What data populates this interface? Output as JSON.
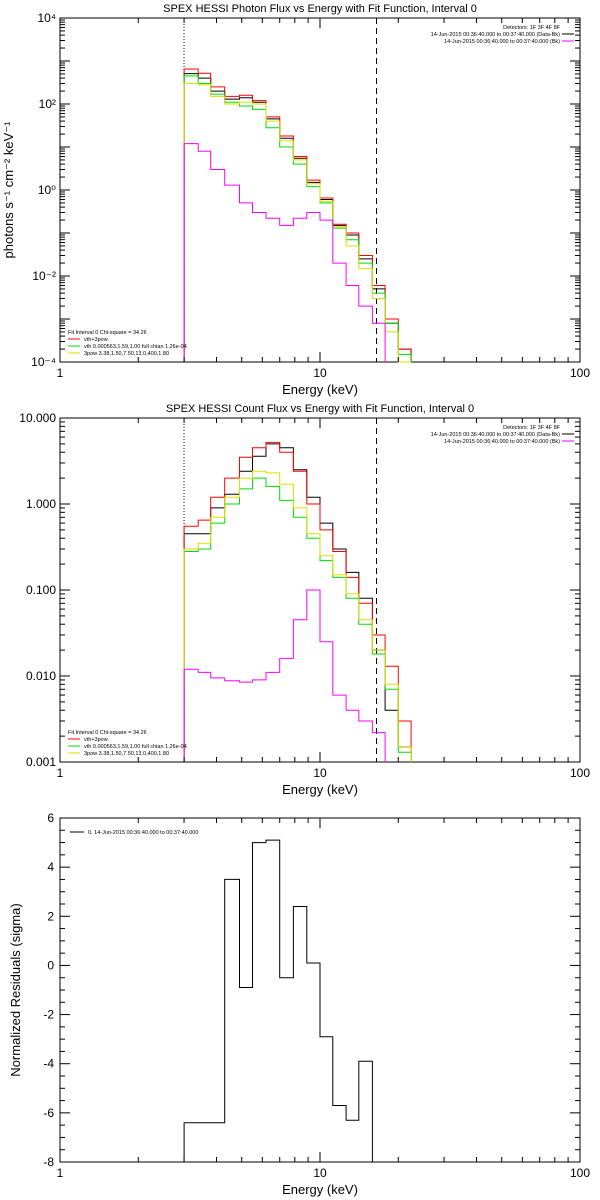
{
  "chart_data": [
    {
      "type": "line",
      "title": "SPEX HESSI Photon Flux vs Energy with Fit Function, Interval 0",
      "xlabel": "Energy (keV)",
      "ylabel": "photons s⁻¹ cm⁻² keV⁻¹",
      "xscale": "log",
      "yscale": "log",
      "xlim": [
        1,
        100
      ],
      "ylim": [
        0.0001,
        10000
      ],
      "x_ticks": [
        "1",
        "10",
        "100"
      ],
      "y_ticks": [
        "10⁻⁴",
        "10⁻²",
        "10⁰",
        "10²",
        "10⁴"
      ],
      "x_edges": [
        3,
        3.4,
        3.8,
        4.3,
        4.9,
        5.5,
        6.2,
        7.0,
        7.9,
        8.9,
        10.0,
        11.2,
        12.6,
        14.1,
        15.9,
        17.8,
        20.0,
        22.4
      ],
      "vlines": [
        {
          "x": 3.0,
          "style": "dotted"
        },
        {
          "x": 16.5,
          "style": "dashed"
        }
      ],
      "legend_tr": {
        "header": "Detectors: 1F 3F 4F 8F",
        "entries": [
          {
            "label": "14-Jun-2015 00:36:40.000 to 00:37:40.000 (Data-Bk)",
            "color": "#000000"
          },
          {
            "label": "14-Jun-2015 00:36:40.000 to 00:37:40.000 (Bk)",
            "color": "#ff00ff"
          }
        ]
      },
      "legend_bl": {
        "header": "Fit Interval 0   Chi-square = 34.26",
        "entries": [
          {
            "label": "vth+3pow",
            "color": "#ff0000"
          },
          {
            "label": "vth 0.000563,1.59,1.00   full chian 1.26e-04",
            "color": "#00dd00"
          },
          {
            "label": "3pow 3.38,1.50,7.50,13.0,400,1.80",
            "color": "#dddd00"
          }
        ]
      },
      "series": [
        {
          "color": "#000000",
          "values": [
            510,
            400,
            200,
            130,
            140,
            110,
            45,
            16,
            5.5,
            1.5,
            0.6,
            0.15,
            0.09,
            0.025,
            0.005,
            0.0008,
            0.0002
          ]
        },
        {
          "color": "#ff0000",
          "values": [
            650,
            520,
            250,
            150,
            160,
            120,
            50,
            18,
            6,
            1.7,
            0.65,
            0.16,
            0.1,
            0.03,
            0.006,
            0.001,
            0.0002
          ]
        },
        {
          "color": "#00dd00",
          "values": [
            450,
            300,
            170,
            110,
            90,
            75,
            28,
            10,
            4,
            1.2,
            0.5,
            0.13,
            0.07,
            0.02,
            0.004,
            0.0008,
            0.00015
          ]
        },
        {
          "color": "#dddd00",
          "values": [
            300,
            280,
            150,
            100,
            110,
            100,
            40,
            14,
            5,
            1.4,
            0.55,
            0.14,
            0.05,
            0.015,
            0.003,
            0.0005,
            0.0001
          ]
        },
        {
          "color": "#ff00ff",
          "values": [
            12,
            8,
            3,
            1.3,
            0.5,
            0.3,
            0.22,
            0.15,
            0.22,
            0.3,
            0.2,
            0.02,
            0.006,
            0.002,
            0.0008,
            null,
            null
          ]
        }
      ]
    },
    {
      "type": "line",
      "title": "SPEX HESSI Count Flux vs Energy with Fit Function, Interval 0",
      "xlabel": "Energy (keV)",
      "ylabel": "",
      "xscale": "log",
      "yscale": "log",
      "xlim": [
        1,
        100
      ],
      "ylim": [
        0.001,
        10
      ],
      "x_ticks": [
        "1",
        "10",
        "100"
      ],
      "y_ticks": [
        "0.001",
        "0.010",
        "0.100",
        "1.000",
        "10.000"
      ],
      "x_edges": [
        3,
        3.4,
        3.8,
        4.3,
        4.9,
        5.5,
        6.2,
        7.0,
        7.9,
        8.9,
        10.0,
        11.2,
        12.6,
        14.1,
        15.9,
        17.8,
        20.0,
        22.4
      ],
      "vlines": [
        {
          "x": 3.0,
          "style": "dotted"
        },
        {
          "x": 16.5,
          "style": "dashed"
        }
      ],
      "legend_tr": {
        "header": "Detectors: 1F 3F 4F 8F",
        "entries": [
          {
            "label": "14-Jun-2015 00:36:40.000 to 00:37:40.000 (Data-Bk)",
            "color": "#000000"
          },
          {
            "label": "14-Jun-2015 00:36:40.000 to 00:37:40.000 (Bk)",
            "color": "#ff00ff"
          }
        ]
      },
      "legend_bl": {
        "header": "Fit Interval 0   Chi-square = 34.26",
        "entries": [
          {
            "label": "vth+3pow",
            "color": "#ff0000"
          },
          {
            "label": "vth 0.000563,1.59,1.00   full chian 1.26e-04",
            "color": "#00dd00"
          },
          {
            "label": "3pow 3.38,1.50,7.50,13.0,400,1.80",
            "color": "#dddd00"
          }
        ]
      },
      "series": [
        {
          "color": "#000000",
          "values": [
            0.45,
            0.45,
            0.9,
            1.3,
            2.4,
            3.6,
            5.0,
            4.5,
            2.5,
            1.2,
            0.6,
            0.3,
            0.16,
            0.08,
            0.02,
            0.004,
            0.0015
          ]
        },
        {
          "color": "#ff0000",
          "values": [
            0.55,
            0.65,
            1.2,
            2.0,
            3.5,
            4.5,
            5.2,
            4.0,
            2.4,
            1.0,
            0.5,
            0.28,
            0.14,
            0.07,
            0.03,
            0.013,
            0.003
          ]
        },
        {
          "color": "#00dd00",
          "values": [
            0.28,
            0.3,
            0.6,
            1.0,
            1.5,
            2.0,
            1.6,
            1.1,
            0.7,
            0.4,
            0.22,
            0.14,
            0.08,
            0.04,
            0.018,
            0.007,
            0.0013
          ]
        },
        {
          "color": "#dddd00",
          "values": [
            0.3,
            0.35,
            0.7,
            1.2,
            2.0,
            2.4,
            2.3,
            1.7,
            0.9,
            0.45,
            0.25,
            0.15,
            0.09,
            0.045,
            0.02,
            0.008,
            0.0015
          ]
        },
        {
          "color": "#ff00ff",
          "values": [
            0.012,
            0.011,
            0.0095,
            0.0088,
            0.0085,
            0.009,
            0.011,
            0.016,
            0.045,
            0.1,
            0.025,
            0.006,
            0.004,
            0.003,
            0.0022,
            null,
            null
          ]
        }
      ]
    },
    {
      "type": "line",
      "title": "",
      "xlabel": "Energy (keV)",
      "ylabel": "Normalized Residuals (sigma)",
      "xscale": "log",
      "yscale": "linear",
      "xlim": [
        1,
        100
      ],
      "ylim": [
        -8,
        6
      ],
      "x_ticks": [
        "1",
        "10",
        "100"
      ],
      "y_ticks": [
        "-8",
        "-6",
        "-4",
        "-2",
        "0",
        "2",
        "4",
        "6"
      ],
      "x_edges": [
        3,
        3.4,
        3.8,
        4.3,
        4.9,
        5.5,
        6.2,
        7.0,
        7.9,
        8.9,
        10.0,
        11.2,
        12.6,
        14.1,
        15.9,
        17.8,
        20.0,
        22.4
      ],
      "vlines": [],
      "legend_tl": {
        "entries": [
          {
            "label": "0. 14-Jun-2015 00:36:40.000 to 00:37:40.000",
            "color": "#000000"
          }
        ]
      },
      "series": [
        {
          "color": "#000000",
          "values": [
            -6.4,
            -6.4,
            -6.4,
            3.5,
            -0.9,
            5.0,
            5.1,
            -0.5,
            2.4,
            0.1,
            -2.9,
            -5.7,
            -6.3,
            -3.9,
            null,
            null,
            null
          ]
        }
      ]
    }
  ]
}
